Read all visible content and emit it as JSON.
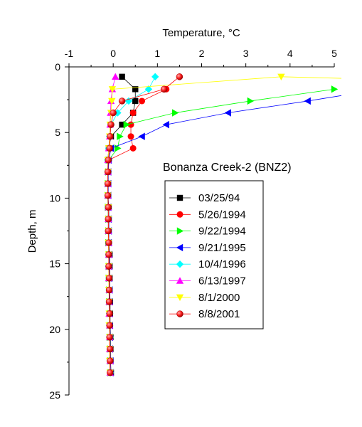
{
  "chart_data": {
    "type": "line",
    "title": "",
    "xlabel": "Temperature, °C",
    "ylabel": "Depth, m",
    "xlim": [
      -1,
      5
    ],
    "ylim": [
      0,
      25
    ],
    "y_inverted": true,
    "x_axis_position": "top",
    "xticks": [
      -1,
      0,
      1,
      2,
      3,
      4,
      5
    ],
    "yticks": [
      0,
      5,
      10,
      15,
      20,
      25
    ],
    "grid": false,
    "annotation": "Bonanza Creek-2 (BNZ2)",
    "legend_position": "right",
    "series": [
      {
        "name": "03/25/94",
        "color": "#000000",
        "marker": "square",
        "points": [
          [
            0.2,
            0.75
          ],
          [
            0.5,
            1.7
          ],
          [
            0.5,
            2.6
          ],
          [
            0.45,
            3.5
          ],
          [
            0.2,
            4.4
          ],
          [
            -0.05,
            5.3
          ],
          [
            -0.1,
            6.2
          ],
          [
            -0.12,
            7.1
          ],
          [
            -0.12,
            8.0
          ],
          [
            -0.12,
            8.9
          ],
          [
            -0.12,
            9.8
          ],
          [
            -0.1,
            10.7
          ],
          [
            -0.1,
            11.6
          ],
          [
            -0.1,
            12.5
          ],
          [
            -0.1,
            13.4
          ],
          [
            -0.08,
            14.3
          ],
          [
            -0.08,
            15.2
          ],
          [
            -0.08,
            16.1
          ],
          [
            -0.08,
            17.0
          ],
          [
            -0.07,
            17.9
          ],
          [
            -0.07,
            18.8
          ],
          [
            -0.07,
            19.7
          ],
          [
            -0.06,
            20.6
          ],
          [
            -0.06,
            21.5
          ],
          [
            -0.06,
            22.4
          ],
          [
            -0.05,
            23.3
          ]
        ]
      },
      {
        "name": "5/26/1994",
        "color": "#ff0000",
        "marker": "circle",
        "points": [
          [
            1.2,
            1.7
          ],
          [
            0.65,
            2.6
          ],
          [
            0.45,
            3.5
          ],
          [
            0.4,
            4.4
          ],
          [
            0.4,
            5.3
          ],
          [
            0.45,
            6.2
          ],
          [
            -0.1,
            7.1
          ],
          [
            -0.11,
            8.0
          ],
          [
            -0.12,
            8.9
          ],
          [
            -0.12,
            9.8
          ],
          [
            -0.11,
            10.7
          ],
          [
            -0.11,
            11.6
          ],
          [
            -0.11,
            12.5
          ],
          [
            -0.1,
            13.4
          ],
          [
            -0.1,
            14.3
          ],
          [
            -0.1,
            15.2
          ],
          [
            -0.09,
            16.1
          ],
          [
            -0.09,
            17.0
          ],
          [
            -0.08,
            17.9
          ],
          [
            -0.08,
            18.8
          ],
          [
            -0.08,
            19.7
          ],
          [
            -0.07,
            20.6
          ],
          [
            -0.07,
            21.5
          ],
          [
            -0.06,
            22.4
          ],
          [
            -0.06,
            23.3
          ]
        ]
      },
      {
        "name": "9/22/1994",
        "color": "#00ff00",
        "marker": "triangle-right",
        "points": [
          [
            5.0,
            1.7
          ],
          [
            3.1,
            2.6
          ],
          [
            1.4,
            3.5
          ],
          [
            0.3,
            4.4
          ],
          [
            0.15,
            5.3
          ],
          [
            0.1,
            6.2
          ],
          [
            -0.1,
            7.1
          ],
          [
            -0.11,
            8.0
          ],
          [
            -0.12,
            8.9
          ],
          [
            -0.12,
            9.8
          ],
          [
            -0.12,
            10.7
          ],
          [
            -0.11,
            11.6
          ],
          [
            -0.11,
            12.5
          ],
          [
            -0.11,
            13.4
          ],
          [
            -0.1,
            14.3
          ],
          [
            -0.1,
            15.2
          ],
          [
            -0.1,
            16.1
          ],
          [
            -0.09,
            17.0
          ],
          [
            -0.09,
            17.9
          ],
          [
            -0.08,
            18.8
          ],
          [
            -0.08,
            19.7
          ],
          [
            -0.08,
            20.6
          ],
          [
            -0.07,
            21.5
          ],
          [
            -0.07,
            22.4
          ],
          [
            -0.06,
            23.3
          ]
        ]
      },
      {
        "name": "9/21/1995",
        "color": "#0000ff",
        "marker": "triangle-left",
        "points": [
          [
            5.5,
            2.0
          ],
          [
            4.4,
            2.6
          ],
          [
            2.6,
            3.5
          ],
          [
            1.2,
            4.4
          ],
          [
            0.65,
            5.3
          ],
          [
            -0.05,
            6.2
          ],
          [
            -0.1,
            7.1
          ],
          [
            -0.11,
            8.0
          ],
          [
            -0.11,
            8.9
          ],
          [
            -0.11,
            9.8
          ],
          [
            -0.11,
            10.7
          ],
          [
            -0.1,
            11.6
          ],
          [
            -0.1,
            12.5
          ],
          [
            -0.1,
            13.4
          ],
          [
            -0.09,
            14.3
          ],
          [
            -0.09,
            15.2
          ],
          [
            -0.09,
            16.1
          ],
          [
            -0.08,
            17.0
          ],
          [
            -0.08,
            17.9
          ],
          [
            -0.08,
            18.8
          ],
          [
            -0.07,
            19.7
          ],
          [
            -0.07,
            20.6
          ],
          [
            -0.07,
            21.5
          ],
          [
            -0.06,
            22.4
          ],
          [
            -0.06,
            23.3
          ]
        ]
      },
      {
        "name": "10/4/1996",
        "color": "#00ffff",
        "marker": "diamond",
        "points": [
          [
            0.95,
            0.75
          ],
          [
            0.8,
            1.7
          ],
          [
            0.35,
            2.6
          ],
          [
            0.1,
            3.5
          ],
          [
            -0.05,
            4.4
          ],
          [
            -0.08,
            5.3
          ],
          [
            -0.1,
            6.2
          ],
          [
            -0.12,
            7.1
          ],
          [
            -0.12,
            8.0
          ],
          [
            -0.12,
            8.9
          ],
          [
            -0.12,
            9.8
          ],
          [
            -0.11,
            10.7
          ],
          [
            -0.11,
            11.6
          ],
          [
            -0.11,
            12.5
          ],
          [
            -0.1,
            13.4
          ],
          [
            -0.1,
            14.3
          ],
          [
            -0.1,
            15.2
          ],
          [
            -0.09,
            16.1
          ],
          [
            -0.09,
            17.0
          ],
          [
            -0.09,
            17.9
          ],
          [
            -0.08,
            18.8
          ],
          [
            -0.08,
            19.7
          ],
          [
            -0.07,
            20.6
          ],
          [
            -0.07,
            21.5
          ],
          [
            -0.07,
            22.4
          ],
          [
            -0.06,
            23.3
          ]
        ]
      },
      {
        "name": "6/13/1997",
        "color": "#ff00ff",
        "marker": "triangle-up",
        "points": [
          [
            0.05,
            0.75
          ],
          [
            -0.02,
            1.7
          ],
          [
            -0.05,
            2.6
          ],
          [
            -0.06,
            3.5
          ],
          [
            -0.07,
            4.4
          ],
          [
            -0.08,
            5.3
          ],
          [
            -0.1,
            6.2
          ],
          [
            -0.12,
            7.1
          ],
          [
            -0.12,
            8.0
          ],
          [
            -0.12,
            8.9
          ],
          [
            -0.12,
            9.8
          ],
          [
            -0.11,
            10.7
          ],
          [
            -0.11,
            11.6
          ],
          [
            -0.11,
            12.5
          ],
          [
            -0.1,
            13.4
          ],
          [
            -0.1,
            14.3
          ],
          [
            -0.1,
            15.2
          ],
          [
            -0.1,
            16.1
          ],
          [
            -0.09,
            17.0
          ],
          [
            -0.09,
            17.9
          ],
          [
            -0.09,
            18.8
          ],
          [
            -0.08,
            19.7
          ],
          [
            -0.08,
            20.6
          ],
          [
            -0.08,
            21.5
          ],
          [
            -0.07,
            22.4
          ],
          [
            -0.07,
            23.3
          ]
        ]
      },
      {
        "name": "8/1/2000",
        "color": "#ffff00",
        "marker": "triangle-down",
        "points": [
          [
            5.5,
            0.9
          ],
          [
            3.8,
            0.75
          ],
          [
            -0.02,
            1.7
          ],
          [
            -0.03,
            2.6
          ],
          [
            -0.05,
            3.5
          ],
          [
            -0.07,
            4.4
          ],
          [
            -0.08,
            5.3
          ],
          [
            -0.1,
            6.2
          ],
          [
            -0.12,
            7.1
          ],
          [
            -0.12,
            8.0
          ],
          [
            -0.12,
            8.9
          ],
          [
            -0.12,
            9.8
          ],
          [
            -0.11,
            10.7
          ],
          [
            -0.11,
            11.6
          ],
          [
            -0.11,
            12.5
          ],
          [
            -0.11,
            13.4
          ],
          [
            -0.1,
            14.3
          ],
          [
            -0.1,
            15.2
          ],
          [
            -0.1,
            16.1
          ],
          [
            -0.1,
            17.0
          ],
          [
            -0.09,
            17.9
          ],
          [
            -0.09,
            18.8
          ],
          [
            -0.09,
            19.7
          ],
          [
            -0.08,
            20.6
          ],
          [
            -0.08,
            21.5
          ],
          [
            -0.08,
            22.4
          ],
          [
            -0.07,
            23.3
          ]
        ]
      },
      {
        "name": "8/8/2001",
        "color": "#ff0000",
        "marker": "circle-shaded",
        "points": [
          [
            1.5,
            0.75
          ],
          [
            1.15,
            1.7
          ],
          [
            0.2,
            2.6
          ],
          [
            0.0,
            3.5
          ],
          [
            -0.05,
            4.4
          ],
          [
            -0.07,
            5.3
          ],
          [
            -0.08,
            6.2
          ],
          [
            -0.11,
            7.1
          ],
          [
            -0.12,
            8.0
          ],
          [
            -0.12,
            8.9
          ],
          [
            -0.12,
            9.8
          ],
          [
            -0.11,
            10.7
          ],
          [
            -0.11,
            11.6
          ],
          [
            -0.11,
            12.5
          ],
          [
            -0.1,
            13.4
          ],
          [
            -0.1,
            14.3
          ],
          [
            -0.1,
            15.2
          ],
          [
            -0.09,
            16.1
          ],
          [
            -0.09,
            17.0
          ],
          [
            -0.09,
            17.9
          ],
          [
            -0.08,
            18.8
          ],
          [
            -0.08,
            19.7
          ],
          [
            -0.08,
            20.6
          ],
          [
            -0.07,
            21.5
          ],
          [
            -0.07,
            22.4
          ],
          [
            -0.07,
            23.3
          ]
        ]
      }
    ]
  }
}
